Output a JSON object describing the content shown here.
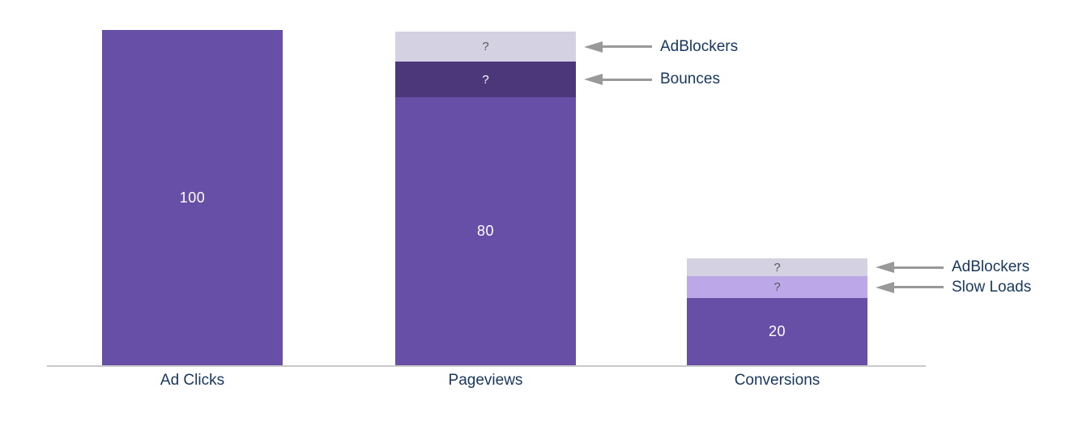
{
  "chart_data": {
    "type": "bar",
    "subtype": "stacked-funnel",
    "title": "",
    "xlabel": "",
    "ylabel": "",
    "ylim": [
      0,
      100
    ],
    "grid": false,
    "legend": "none",
    "background_color": "#ffffff",
    "axis_line_color": "#c9c9c9",
    "category_label_color": "#17375e",
    "annotation_text_color": "#17375e",
    "arrow_color": "#999999",
    "categories": [
      "Ad Clicks",
      "Pageviews",
      "Conversions"
    ],
    "bars": [
      {
        "category": "Ad Clicks",
        "segments": [
          {
            "name": "ad-clicks",
            "value": 100,
            "value_known": true,
            "display": "100",
            "color": "#674ea7",
            "text_color": "#ffffff",
            "annotation": null
          }
        ]
      },
      {
        "category": "Pageviews",
        "segments": [
          {
            "name": "pageviews",
            "value": 80,
            "value_known": true,
            "display": "80",
            "color": "#674ea7",
            "text_color": "#ffffff",
            "annotation": null
          },
          {
            "name": "bounces",
            "value": 10.5,
            "value_known": false,
            "display": "?",
            "color": "#4b3779",
            "text_color": "#ffffff",
            "annotation": "Bounces"
          },
          {
            "name": "adblockers",
            "value": 9,
            "value_known": false,
            "display": "?",
            "color": "#d4d1e2",
            "text_color": "#595959",
            "annotation": "AdBlockers"
          }
        ]
      },
      {
        "category": "Conversions",
        "segments": [
          {
            "name": "conversions",
            "value": 20,
            "value_known": true,
            "display": "20",
            "color": "#674ea7",
            "text_color": "#ffffff",
            "annotation": null
          },
          {
            "name": "slow-loads",
            "value": 6.5,
            "value_known": false,
            "display": "?",
            "color": "#bca7e8",
            "text_color": "#595959",
            "annotation": "Slow Loads"
          },
          {
            "name": "adblockers",
            "value": 5.3,
            "value_known": false,
            "display": "?",
            "color": "#d4d1e2",
            "text_color": "#595959",
            "annotation": "AdBlockers"
          }
        ]
      }
    ]
  }
}
